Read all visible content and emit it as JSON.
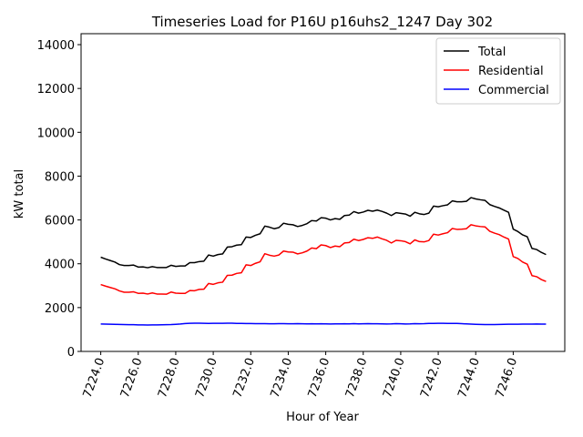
{
  "chart_data": {
    "type": "line",
    "title": "Timeseries Load for P16U p16uhs2_1247  Day 302",
    "xlabel": "Hour of Year",
    "ylabel": "kW total",
    "xlim": [
      7222.95,
      7248.75
    ],
    "ylim": [
      0,
      14500
    ],
    "x_ticks": [
      7224,
      7226,
      7228,
      7230,
      7232,
      7234,
      7236,
      7238,
      7240,
      7242,
      7244,
      7246
    ],
    "x_tick_labels": [
      "7224.0",
      "7226.0",
      "7228.0",
      "7230.0",
      "7232.0",
      "7234.0",
      "7236.0",
      "7238.0",
      "7240.0",
      "7242.0",
      "7244.0",
      "7246.0"
    ],
    "y_ticks": [
      0,
      2000,
      4000,
      6000,
      8000,
      10000,
      12000,
      14000
    ],
    "y_tick_labels": [
      "0",
      "2000",
      "4000",
      "6000",
      "8000",
      "10000",
      "12000",
      "14000"
    ],
    "legend_position": "top-right",
    "x_start": 7224,
    "x_step": 0.25,
    "series": [
      {
        "name": "Total",
        "color": "#000000",
        "values": [
          4300,
          4220,
          4150,
          4080,
          3960,
          3920,
          3920,
          3940,
          3850,
          3860,
          3820,
          3870,
          3830,
          3830,
          3830,
          3930,
          3880,
          3900,
          3900,
          4050,
          4050,
          4100,
          4120,
          4400,
          4350,
          4420,
          4450,
          4760,
          4780,
          4850,
          4870,
          5220,
          5200,
          5300,
          5370,
          5720,
          5670,
          5600,
          5650,
          5850,
          5800,
          5780,
          5700,
          5750,
          5830,
          5970,
          5950,
          6100,
          6080,
          6000,
          6060,
          6030,
          6200,
          6220,
          6380,
          6310,
          6360,
          6440,
          6400,
          6450,
          6390,
          6310,
          6200,
          6330,
          6300,
          6270,
          6170,
          6350,
          6280,
          6250,
          6310,
          6630,
          6600,
          6650,
          6690,
          6870,
          6830,
          6830,
          6850,
          7020,
          6960,
          6920,
          6890,
          6700,
          6620,
          6550,
          6450,
          6350,
          5580,
          5470,
          5320,
          5230,
          4700,
          4650,
          4520,
          4420
        ]
      },
      {
        "name": "Residential",
        "color": "#ff0000",
        "values": [
          3050,
          2980,
          2920,
          2860,
          2760,
          2700,
          2700,
          2720,
          2650,
          2660,
          2620,
          2670,
          2620,
          2620,
          2610,
          2710,
          2660,
          2650,
          2650,
          2780,
          2770,
          2830,
          2840,
          3100,
          3060,
          3130,
          3160,
          3470,
          3480,
          3560,
          3590,
          3950,
          3920,
          4020,
          4090,
          4460,
          4390,
          4350,
          4400,
          4580,
          4540,
          4530,
          4450,
          4500,
          4580,
          4720,
          4690,
          4860,
          4830,
          4740,
          4810,
          4780,
          4950,
          4970,
          5120,
          5060,
          5110,
          5190,
          5160,
          5220,
          5140,
          5070,
          4950,
          5070,
          5050,
          5010,
          4910,
          5090,
          5010,
          5000,
          5060,
          5350,
          5310,
          5370,
          5420,
          5610,
          5570,
          5580,
          5600,
          5780,
          5730,
          5700,
          5680,
          5480,
          5400,
          5330,
          5220,
          5130,
          4330,
          4240,
          4080,
          3980,
          3460,
          3410,
          3280,
          3190
        ]
      },
      {
        "name": "Commercial",
        "color": "#0000ff",
        "values": [
          1250,
          1245,
          1240,
          1235,
          1230,
          1225,
          1220,
          1220,
          1210,
          1210,
          1205,
          1210,
          1210,
          1215,
          1220,
          1225,
          1235,
          1250,
          1270,
          1285,
          1290,
          1290,
          1285,
          1280,
          1285,
          1285,
          1285,
          1290,
          1290,
          1280,
          1275,
          1270,
          1270,
          1265,
          1265,
          1265,
          1260,
          1260,
          1265,
          1265,
          1260,
          1260,
          1265,
          1260,
          1255,
          1260,
          1255,
          1260,
          1255,
          1250,
          1255,
          1255,
          1260,
          1255,
          1265,
          1255,
          1260,
          1265,
          1260,
          1260,
          1255,
          1250,
          1255,
          1265,
          1260,
          1250,
          1255,
          1265,
          1260,
          1265,
          1275,
          1280,
          1285,
          1285,
          1280,
          1280,
          1275,
          1265,
          1255,
          1245,
          1235,
          1230,
          1225,
          1225,
          1225,
          1230,
          1235,
          1240,
          1240,
          1240,
          1245,
          1245,
          1245,
          1250,
          1245,
          1245
        ]
      }
    ]
  }
}
